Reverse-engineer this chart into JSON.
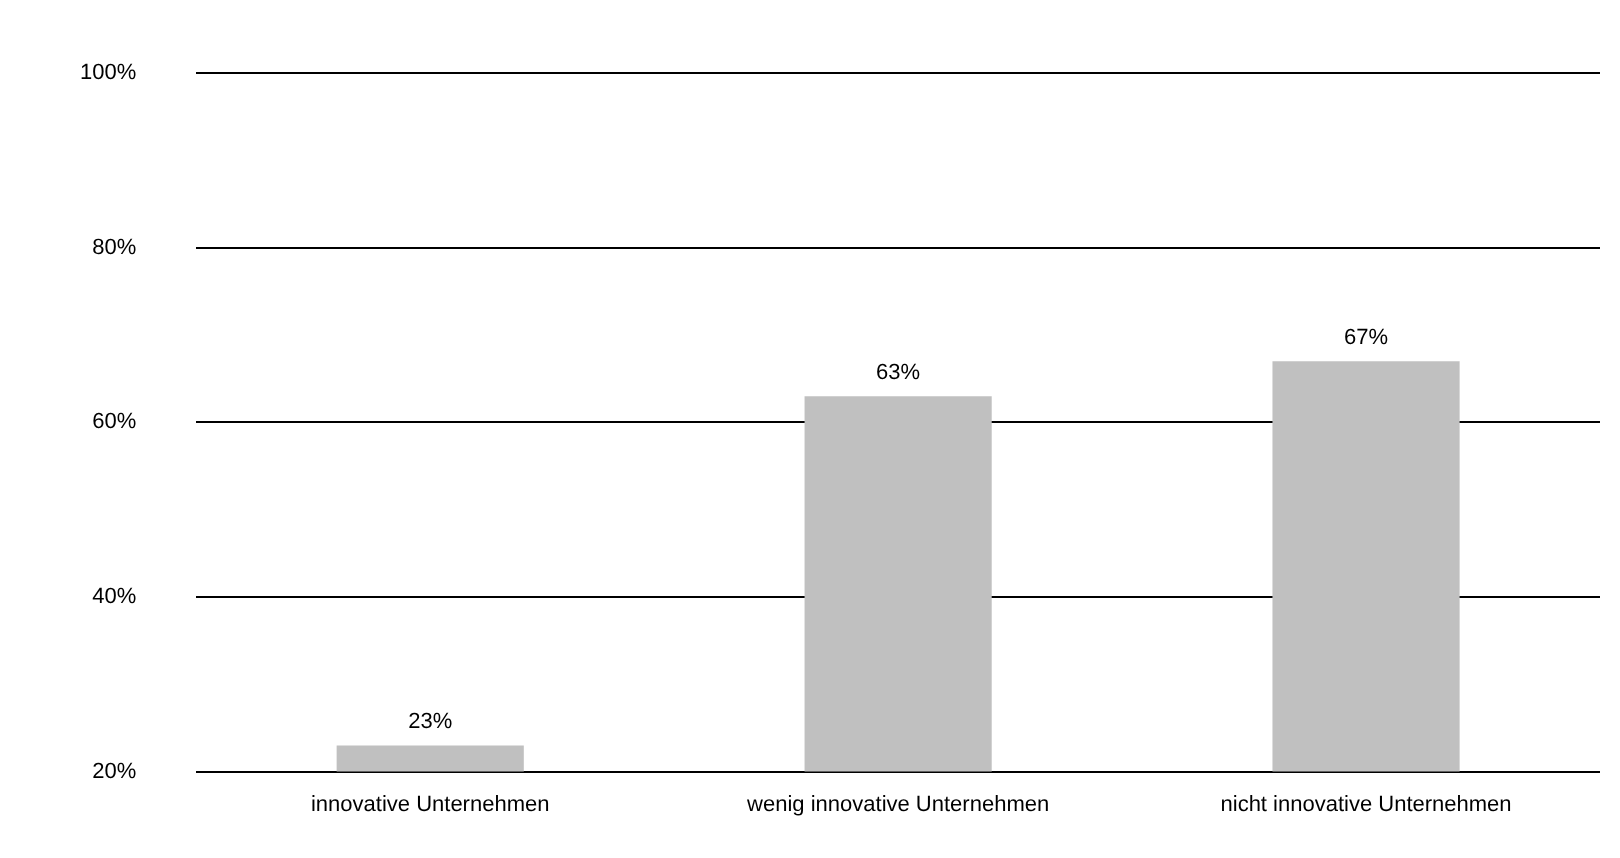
{
  "chart_data": {
    "type": "bar",
    "categories": [
      "innovative Unternehmen",
      "wenig innovative Unternehmen",
      "nicht innovative Unternehmen"
    ],
    "values": [
      23,
      63,
      67
    ],
    "color": "#c0c0c0",
    "value_labels": [
      "23%",
      "63%",
      "67%"
    ],
    "ylim": [
      20,
      100
    ],
    "yticks": [
      {
        "value": 20,
        "label": "20%"
      },
      {
        "value": 40,
        "label": "40%"
      },
      {
        "value": 60,
        "label": "60%"
      },
      {
        "value": 80,
        "label": "80%"
      },
      {
        "value": 100,
        "label": "100%"
      }
    ],
    "grid": "y",
    "legend": false
  }
}
